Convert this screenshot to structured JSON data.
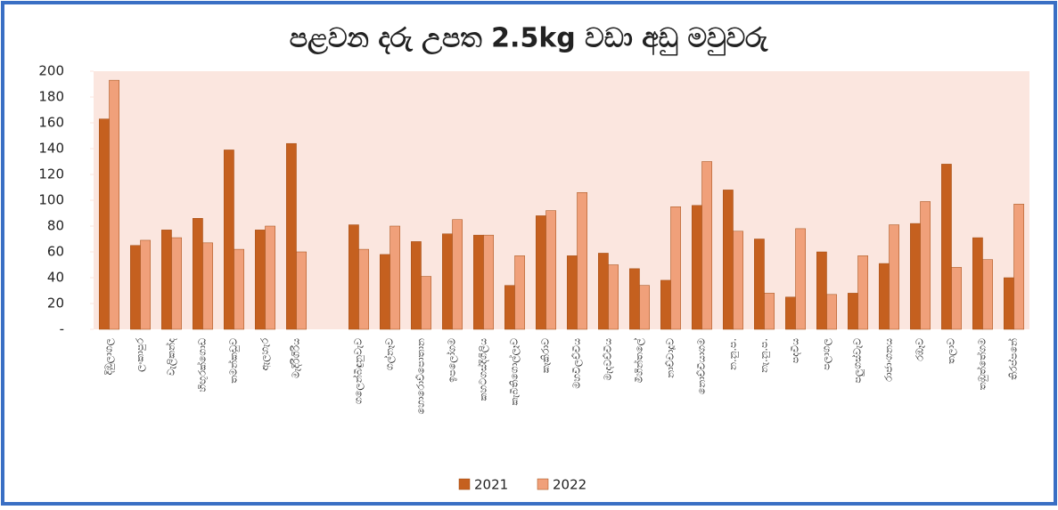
{
  "chart_data": {
    "type": "bar",
    "title": "පළවන දරු උපත 2.5kg වඩා අඩු මවුවරු",
    "categories": [
      "දිඹුලාගල",
      "ලංකාපුර",
      "වැලිකන්ද",
      "හිඟුරක්ගොඩ",
      "තමන්කඩුව",
      "ඇලහැර",
      "මැදිරිගිරිය",
      null,
      "ගලෙන්බිඳුනුවැව",
      "ගල්නෑව",
      "හොරොව්පොතාන",
      "ඉපලෝගම",
      "කහටගස්දිගිලිය",
      "කැබිතිගොල්ලෑව",
      "කැකිරාව",
      "මහවිලච්චිය",
      "මැදවච්චිය",
      "මිහින්තලේ",
      "නාච්චාදූව",
      "නොච්චියාගම",
      "න.නු.ප.",
      "නැ.නු.ප.",
      "පදවිය",
      "පලාගල",
      "පලුගස්වැව",
      "රාජාංගනය",
      "රඹෑව",
      "තලාව",
      "තඹුත්තේගම",
      "තිරප්පනේ"
    ],
    "series": [
      {
        "name": "2021",
        "color": "#c5601f",
        "values": [
          163,
          65,
          77,
          86,
          139,
          77,
          144,
          null,
          81,
          58,
          68,
          74,
          73,
          34,
          88,
          57,
          59,
          47,
          38,
          96,
          108,
          70,
          25,
          60,
          28,
          51,
          82,
          128,
          71,
          40
        ]
      },
      {
        "name": "2022",
        "color": "#f0a07a",
        "values": [
          193,
          69,
          71,
          67,
          62,
          80,
          60,
          null,
          62,
          80,
          41,
          85,
          73,
          57,
          92,
          106,
          50,
          34,
          95,
          130,
          76,
          28,
          78,
          27,
          57,
          81,
          99,
          48,
          54,
          97
        ]
      }
    ],
    "ylim": [
      0,
      200
    ],
    "yticks": [
      {
        "value": 0,
        "label": "-"
      },
      20,
      40,
      60,
      80,
      100,
      120,
      140,
      160,
      180,
      200
    ],
    "legend": "bottom"
  }
}
